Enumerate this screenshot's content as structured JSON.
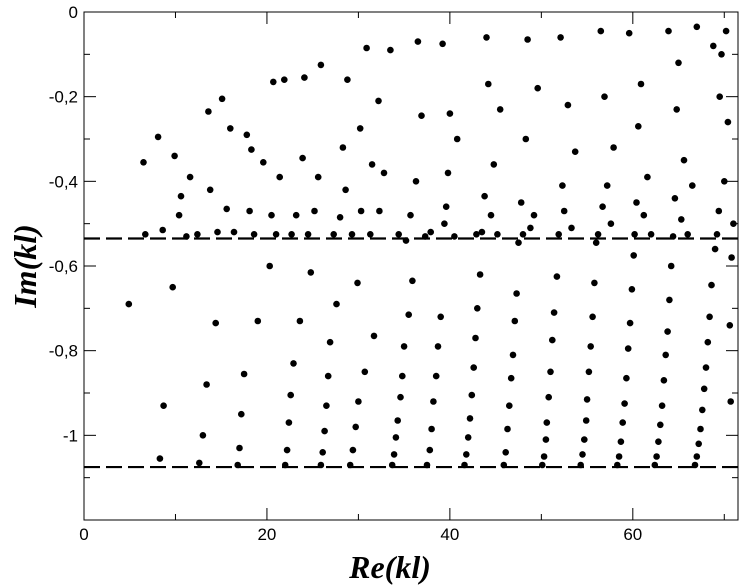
{
  "chart_data": {
    "type": "scatter",
    "xlabel": "Re(kl)",
    "ylabel": "Im(kl)",
    "xlim": [
      0,
      71.5
    ],
    "ylim": [
      -1.2,
      0
    ],
    "xticks": [
      {
        "value": 0,
        "label": "0"
      },
      {
        "value": 20,
        "label": "20"
      },
      {
        "value": 40,
        "label": "40"
      },
      {
        "value": 60,
        "label": "60"
      }
    ],
    "yticks": [
      {
        "value": 0,
        "label": "0"
      },
      {
        "value": -0.2,
        "label": "-0,2"
      },
      {
        "value": -0.4,
        "label": "-0,4"
      },
      {
        "value": -0.6,
        "label": "-0,6"
      },
      {
        "value": -0.8,
        "label": "-0,8"
      },
      {
        "value": -1.0,
        "label": "-1"
      }
    ],
    "grid": false,
    "reference_lines": [
      {
        "orientation": "horizontal",
        "y": -0.535,
        "style": "dashed"
      },
      {
        "orientation": "horizontal",
        "y": -1.075,
        "style": "dashed"
      }
    ],
    "series": [
      {
        "points": [
          [
            4.9,
            -0.69
          ],
          [
            6.5,
            -0.355
          ],
          [
            6.7,
            -0.525
          ],
          [
            8.1,
            -0.295
          ],
          [
            8.3,
            -1.055
          ],
          [
            8.6,
            -0.515
          ],
          [
            8.7,
            -0.93
          ],
          [
            9.7,
            -0.65
          ],
          [
            9.9,
            -0.34
          ],
          [
            10.4,
            -0.48
          ],
          [
            10.6,
            -0.435
          ],
          [
            11.2,
            -0.53
          ],
          [
            11.6,
            -0.39
          ],
          [
            12.4,
            -0.525
          ],
          [
            12.6,
            -1.065
          ],
          [
            13.0,
            -1.0
          ],
          [
            13.4,
            -0.88
          ],
          [
            13.6,
            -0.235
          ],
          [
            13.8,
            -0.42
          ],
          [
            14.4,
            -0.735
          ],
          [
            14.6,
            -0.52
          ],
          [
            15.1,
            -0.205
          ],
          [
            15.6,
            -0.465
          ],
          [
            16.0,
            -0.275
          ],
          [
            16.4,
            -0.52
          ],
          [
            16.8,
            -1.07
          ],
          [
            17.0,
            -1.03
          ],
          [
            17.2,
            -0.95
          ],
          [
            17.5,
            -0.855
          ],
          [
            17.8,
            -0.29
          ],
          [
            18.1,
            -0.47
          ],
          [
            18.3,
            -0.325
          ],
          [
            18.6,
            -0.525
          ],
          [
            19.0,
            -0.73
          ],
          [
            19.6,
            -0.355
          ],
          [
            20.3,
            -0.6
          ],
          [
            20.5,
            -0.48
          ],
          [
            20.7,
            -0.165
          ],
          [
            21.0,
            -0.525
          ],
          [
            21.4,
            -0.39
          ],
          [
            21.9,
            -0.16
          ],
          [
            22.0,
            -1.07
          ],
          [
            22.2,
            -1.035
          ],
          [
            22.4,
            -0.97
          ],
          [
            22.6,
            -0.905
          ],
          [
            22.7,
            -0.525
          ],
          [
            22.9,
            -0.83
          ],
          [
            23.2,
            -0.48
          ],
          [
            23.6,
            -0.73
          ],
          [
            23.9,
            -0.345
          ],
          [
            24.1,
            -0.155
          ],
          [
            24.5,
            -0.525
          ],
          [
            24.8,
            -0.615
          ],
          [
            25.2,
            -0.47
          ],
          [
            25.6,
            -0.39
          ],
          [
            25.9,
            -0.125
          ],
          [
            25.9,
            -1.07
          ],
          [
            26.1,
            -1.04
          ],
          [
            26.3,
            -0.99
          ],
          [
            26.5,
            -0.93
          ],
          [
            26.7,
            -0.86
          ],
          [
            26.9,
            -0.78
          ],
          [
            27.3,
            -0.525
          ],
          [
            27.6,
            -0.69
          ],
          [
            28.0,
            -0.485
          ],
          [
            28.3,
            -0.32
          ],
          [
            28.6,
            -0.42
          ],
          [
            28.8,
            -0.16
          ],
          [
            29.1,
            -1.07
          ],
          [
            29.3,
            -0.525
          ],
          [
            29.4,
            -1.035
          ],
          [
            29.7,
            -0.98
          ],
          [
            29.9,
            -0.64
          ],
          [
            30.0,
            -0.92
          ],
          [
            30.2,
            -0.275
          ],
          [
            30.3,
            -0.47
          ],
          [
            30.7,
            -0.85
          ],
          [
            30.9,
            -0.085
          ],
          [
            31.3,
            -0.525
          ],
          [
            31.5,
            -0.36
          ],
          [
            31.7,
            -0.765
          ],
          [
            32.2,
            -0.21
          ],
          [
            32.3,
            -0.47
          ],
          [
            32.8,
            -0.38
          ],
          [
            33.5,
            -0.09
          ],
          [
            33.7,
            -1.07
          ],
          [
            33.9,
            -1.045
          ],
          [
            34.1,
            -1.005
          ],
          [
            34.3,
            -0.965
          ],
          [
            34.4,
            -0.525
          ],
          [
            34.6,
            -0.91
          ],
          [
            34.8,
            -0.86
          ],
          [
            35.0,
            -0.79
          ],
          [
            35.2,
            -0.54
          ],
          [
            35.5,
            -0.715
          ],
          [
            35.7,
            -0.48
          ],
          [
            35.9,
            -0.635
          ],
          [
            36.3,
            -0.4
          ],
          [
            36.5,
            -0.07
          ],
          [
            36.9,
            -0.245
          ],
          [
            37.3,
            -0.53
          ],
          [
            37.5,
            -1.07
          ],
          [
            37.8,
            -1.035
          ],
          [
            37.9,
            -0.52
          ],
          [
            38.0,
            -0.985
          ],
          [
            38.2,
            -0.92
          ],
          [
            38.5,
            -0.86
          ],
          [
            38.7,
            -0.79
          ],
          [
            39.0,
            -0.72
          ],
          [
            39.2,
            -0.075
          ],
          [
            39.4,
            -0.5
          ],
          [
            39.6,
            -0.46
          ],
          [
            39.8,
            -0.38
          ],
          [
            40.0,
            -0.24
          ],
          [
            40.5,
            -0.53
          ],
          [
            40.8,
            -0.3
          ],
          [
            41.6,
            -1.07
          ],
          [
            41.8,
            -1.045
          ],
          [
            42.0,
            -1.005
          ],
          [
            42.2,
            -0.96
          ],
          [
            42.4,
            -0.905
          ],
          [
            42.6,
            -0.84
          ],
          [
            42.8,
            -0.77
          ],
          [
            42.9,
            -0.525
          ],
          [
            43.0,
            -0.7
          ],
          [
            43.3,
            -0.62
          ],
          [
            43.5,
            -0.52
          ],
          [
            43.8,
            -0.435
          ],
          [
            44.0,
            -0.06
          ],
          [
            44.2,
            -0.17
          ],
          [
            44.5,
            -0.48
          ],
          [
            44.8,
            -0.36
          ],
          [
            45.2,
            -0.525
          ],
          [
            45.5,
            -0.23
          ],
          [
            45.9,
            -1.07
          ],
          [
            46.1,
            -1.04
          ],
          [
            46.3,
            -0.985
          ],
          [
            46.5,
            -0.93
          ],
          [
            46.7,
            -0.865
          ],
          [
            46.9,
            -0.81
          ],
          [
            47.1,
            -0.73
          ],
          [
            47.3,
            -0.665
          ],
          [
            47.5,
            -0.545
          ],
          [
            47.8,
            -0.45
          ],
          [
            48.0,
            -0.525
          ],
          [
            48.3,
            -0.3
          ],
          [
            48.5,
            -0.065
          ],
          [
            48.8,
            -0.51
          ],
          [
            49.2,
            -0.48
          ],
          [
            49.6,
            -0.18
          ],
          [
            50.1,
            -1.07
          ],
          [
            50.3,
            -1.05
          ],
          [
            50.5,
            -1.01
          ],
          [
            50.6,
            -0.97
          ],
          [
            50.8,
            -0.91
          ],
          [
            51.0,
            -0.85
          ],
          [
            51.2,
            -0.775
          ],
          [
            51.4,
            -0.71
          ],
          [
            51.7,
            -0.625
          ],
          [
            51.9,
            -0.525
          ],
          [
            52.1,
            -0.06
          ],
          [
            52.3,
            -0.41
          ],
          [
            52.5,
            -0.47
          ],
          [
            52.9,
            -0.22
          ],
          [
            53.3,
            -0.51
          ],
          [
            53.7,
            -0.33
          ],
          [
            54.3,
            -1.07
          ],
          [
            54.5,
            -1.045
          ],
          [
            54.7,
            -1.01
          ],
          [
            54.9,
            -0.965
          ],
          [
            55.0,
            -0.915
          ],
          [
            55.2,
            -0.85
          ],
          [
            55.4,
            -0.79
          ],
          [
            55.6,
            -0.72
          ],
          [
            55.8,
            -0.64
          ],
          [
            56.0,
            -0.545
          ],
          [
            56.2,
            -0.525
          ],
          [
            56.5,
            -0.045
          ],
          [
            56.7,
            -0.46
          ],
          [
            56.9,
            -0.2
          ],
          [
            57.2,
            -0.41
          ],
          [
            57.6,
            -0.5
          ],
          [
            57.9,
            -0.32
          ],
          [
            58.3,
            -1.07
          ],
          [
            58.5,
            -1.05
          ],
          [
            58.7,
            -1.015
          ],
          [
            58.9,
            -0.97
          ],
          [
            59.1,
            -0.925
          ],
          [
            59.3,
            -0.865
          ],
          [
            59.5,
            -0.795
          ],
          [
            59.6,
            -0.05
          ],
          [
            59.7,
            -0.735
          ],
          [
            59.9,
            -0.655
          ],
          [
            60.1,
            -0.575
          ],
          [
            60.2,
            -0.525
          ],
          [
            60.4,
            -0.45
          ],
          [
            60.6,
            -0.27
          ],
          [
            60.9,
            -0.17
          ],
          [
            61.2,
            -0.48
          ],
          [
            61.6,
            -0.39
          ],
          [
            62.0,
            -0.525
          ],
          [
            62.4,
            -1.07
          ],
          [
            62.6,
            -1.05
          ],
          [
            62.8,
            -1.015
          ],
          [
            63.0,
            -0.975
          ],
          [
            63.2,
            -0.93
          ],
          [
            63.4,
            -0.87
          ],
          [
            63.6,
            -0.81
          ],
          [
            63.8,
            -0.755
          ],
          [
            63.9,
            -0.045
          ],
          [
            64.0,
            -0.68
          ],
          [
            64.2,
            -0.6
          ],
          [
            64.4,
            -0.53
          ],
          [
            64.6,
            -0.44
          ],
          [
            64.8,
            -0.23
          ],
          [
            65.0,
            -0.12
          ],
          [
            65.3,
            -0.49
          ],
          [
            65.6,
            -0.35
          ],
          [
            66.0,
            -0.525
          ],
          [
            66.5,
            -0.41
          ],
          [
            66.8,
            -1.07
          ],
          [
            67.0,
            -0.035
          ],
          [
            67.0,
            -1.05
          ],
          [
            67.2,
            -1.02
          ],
          [
            67.4,
            -0.985
          ],
          [
            67.6,
            -0.94
          ],
          [
            67.8,
            -0.89
          ],
          [
            68.0,
            -0.84
          ],
          [
            68.2,
            -0.78
          ],
          [
            68.4,
            -0.72
          ],
          [
            68.6,
            -0.645
          ],
          [
            68.8,
            -0.08
          ],
          [
            69.0,
            -0.56
          ],
          [
            69.2,
            -0.525
          ],
          [
            69.4,
            -0.47
          ],
          [
            69.5,
            -0.2
          ],
          [
            69.7,
            -0.1
          ],
          [
            70.0,
            -0.4
          ],
          [
            70.2,
            -0.045
          ],
          [
            70.4,
            -0.26
          ],
          [
            70.6,
            -0.74
          ],
          [
            70.7,
            -0.92
          ],
          [
            70.8,
            -0.58
          ],
          [
            71.0,
            -0.5
          ]
        ]
      }
    ]
  }
}
